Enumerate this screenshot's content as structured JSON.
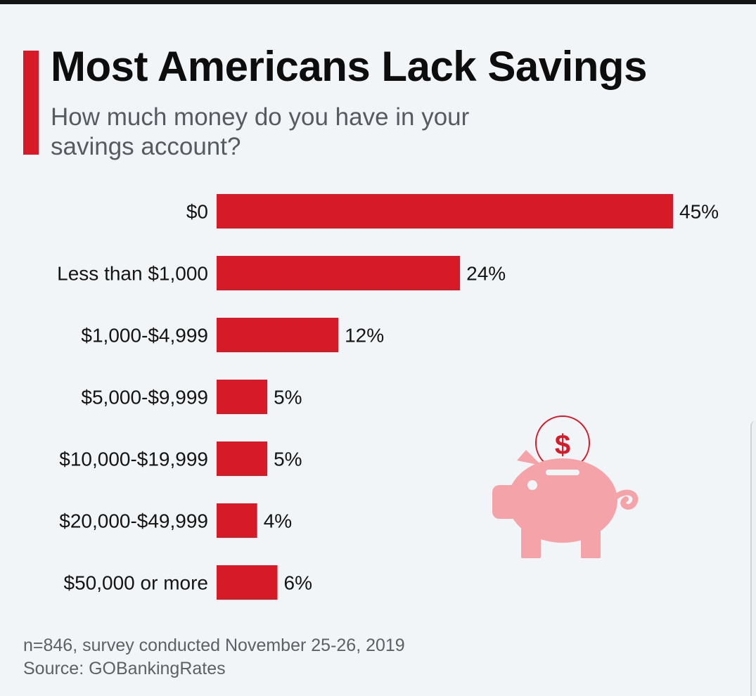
{
  "header": {
    "title": "Most Americans Lack Savings",
    "subtitle": "How much money do you have in your savings account?"
  },
  "footer": {
    "note": "n=846, survey conducted November 25-26, 2019",
    "source": "Source: GOBankingRates"
  },
  "colors": {
    "bar": "#d71a28",
    "accent": "#d71a28",
    "piggy": "#f4a3a8"
  },
  "illustration": {
    "icon": "piggy-bank-icon",
    "coin_symbol": "$"
  },
  "chart_data": {
    "type": "bar",
    "orientation": "horizontal",
    "categories": [
      "$0",
      "Less than $1,000",
      "$1,000-$4,999",
      "$5,000-$9,999",
      "$10,000-$19,999",
      "$20,000-$49,999",
      "$50,000 or more"
    ],
    "values": [
      45,
      24,
      12,
      5,
      5,
      4,
      6
    ],
    "value_labels": [
      "45%",
      "24%",
      "12%",
      "5%",
      "5%",
      "4%",
      "6%"
    ],
    "unit": "%",
    "xlim": [
      0,
      45
    ],
    "grid": false,
    "legend": "none"
  }
}
